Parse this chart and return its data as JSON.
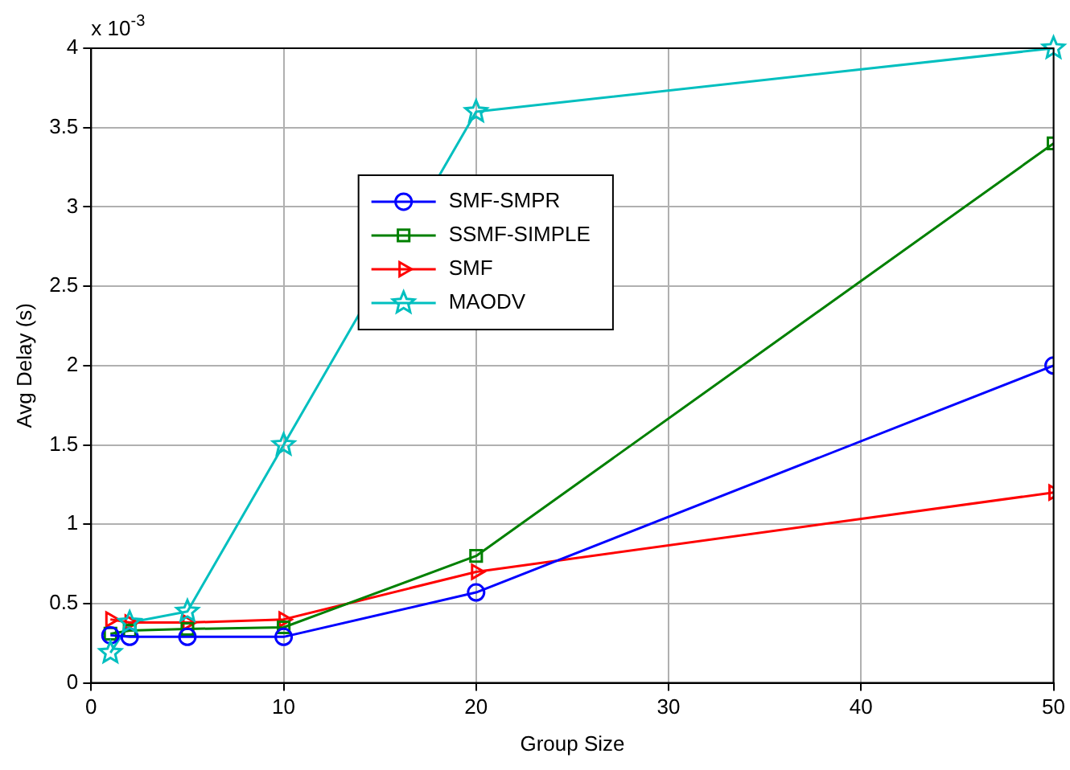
{
  "chart_data": {
    "type": "line",
    "xlabel": "Group Size",
    "ylabel": "Avg Delay (s)",
    "annotations": [
      "x 10$^{-3}$"
    ],
    "x": [
      1,
      2,
      5,
      10,
      20,
      50
    ],
    "series": [
      {
        "name": "SMF-SMPR",
        "color": "#0000ff",
        "marker": "circle",
        "values": [
          0.3,
          0.29,
          0.29,
          0.29,
          0.57,
          2.0
        ]
      },
      {
        "name": "SSMF-SIMPLE",
        "color": "#008000",
        "marker": "square",
        "values": [
          0.31,
          0.33,
          0.34,
          0.35,
          0.8,
          3.4
        ]
      },
      {
        "name": "SMF",
        "color": "#ff0000",
        "marker": "triangle",
        "values": [
          0.4,
          0.38,
          0.38,
          0.4,
          0.7,
          1.2
        ]
      },
      {
        "name": "MAODV",
        "color": "#00bfbf",
        "marker": "star",
        "values": [
          0.19,
          0.38,
          0.45,
          1.5,
          3.6,
          4.0
        ]
      }
    ],
    "xlim": [
      0,
      50
    ],
    "xticks": [
      0,
      10,
      20,
      30,
      40,
      50
    ],
    "ylim": [
      0,
      4
    ],
    "yticks": [
      0,
      0.5,
      1,
      1.5,
      2,
      2.5,
      3,
      3.5,
      4
    ],
    "grid": true,
    "legend": "top",
    "line_style": "solid"
  }
}
